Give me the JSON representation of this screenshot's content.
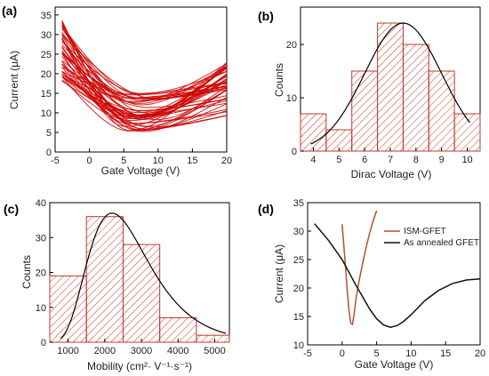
{
  "chart_data": [
    {
      "panel": "(a)",
      "type": "line",
      "xlabel": "Gate Voltage (V)",
      "ylabel": "Current (μA)",
      "xlim": [
        -5,
        20
      ],
      "ylim": [
        0,
        37
      ],
      "xticks": [
        -5,
        0,
        5,
        10,
        15,
        20
      ],
      "yticks": [
        0,
        5,
        10,
        15,
        20,
        25,
        30,
        35
      ],
      "color": "#cc0000",
      "curve_model": {
        "count": 46,
        "dirac_range": [
          5,
          10
        ],
        "min_current_range": [
          5,
          15
        ],
        "left_current_range": [
          18,
          34
        ],
        "right_current_range": [
          9,
          23
        ]
      }
    },
    {
      "panel": "(b)",
      "type": "bar",
      "xlabel": "Dirac Voltage (V)",
      "ylabel": "Counts",
      "bin_edges": [
        3.5,
        4.5,
        5.5,
        6.5,
        7.5,
        8.5,
        9.5,
        10.5
      ],
      "values": [
        7,
        4,
        15,
        24,
        20,
        15,
        7
      ],
      "xlim": [
        3.5,
        10.5
      ],
      "ylim": [
        0,
        27
      ],
      "xticks": [
        4,
        5,
        6,
        7,
        8,
        9,
        10
      ],
      "yticks": [
        0,
        10,
        20
      ],
      "fit": {
        "type": "gaussian",
        "mean": 7.5,
        "sigma": 1.5,
        "peak": 24,
        "range": [
          3.9,
          10.1
        ]
      },
      "bar_color": "#c0392b"
    },
    {
      "panel": "(c)",
      "type": "bar",
      "xlabel": "Mobility (cm²· V⁻¹·s⁻¹)",
      "ylabel": "Counts",
      "bin_edges": [
        500,
        1500,
        2500,
        3500,
        4500,
        5500
      ],
      "values": [
        19,
        36,
        28,
        7,
        2
      ],
      "xlim": [
        500,
        5400
      ],
      "ylim": [
        0,
        40
      ],
      "xticks": [
        1000,
        2000,
        3000,
        4000,
        5000
      ],
      "yticks": [
        0,
        10,
        20,
        30,
        40
      ],
      "fit": {
        "type": "lognormal",
        "peak_x": 2200,
        "peak": 37,
        "sigma": 0.38,
        "range": [
          800,
          5300
        ]
      },
      "bar_color": "#c0392b"
    },
    {
      "panel": "(d)",
      "type": "line",
      "xlabel": "Gate Voltage (V)",
      "ylabel": "Current (μA)",
      "xlim": [
        -5,
        20
      ],
      "ylim": [
        10,
        35
      ],
      "xticks": [
        -5,
        0,
        5,
        10,
        15,
        20
      ],
      "yticks": [
        10,
        15,
        20,
        25,
        30,
        35
      ],
      "legend_position": "top-right",
      "series": [
        {
          "name": "ISM-GFET",
          "color": "#b5502a",
          "x": [
            0,
            0.25,
            0.5,
            0.75,
            1.0,
            1.25,
            1.5,
            1.75,
            2.0,
            2.5,
            3.0,
            3.5,
            4.0,
            4.5,
            5.0
          ],
          "y": [
            31.2,
            27.5,
            23.5,
            19.5,
            16.0,
            13.8,
            13.6,
            15.5,
            18.0,
            21.5,
            24.5,
            27.3,
            29.7,
            31.8,
            33.6
          ]
        },
        {
          "name": "As annealed GFET",
          "color": "#111111",
          "x": [
            -4,
            -2,
            0,
            2,
            4,
            5,
            6,
            7,
            8,
            9,
            10,
            12,
            14,
            16,
            18,
            20
          ],
          "y": [
            31.3,
            28.4,
            25.0,
            20.5,
            16.3,
            14.6,
            13.5,
            13.1,
            13.4,
            14.2,
            15.3,
            17.8,
            19.6,
            20.8,
            21.4,
            21.6
          ]
        }
      ]
    }
  ]
}
